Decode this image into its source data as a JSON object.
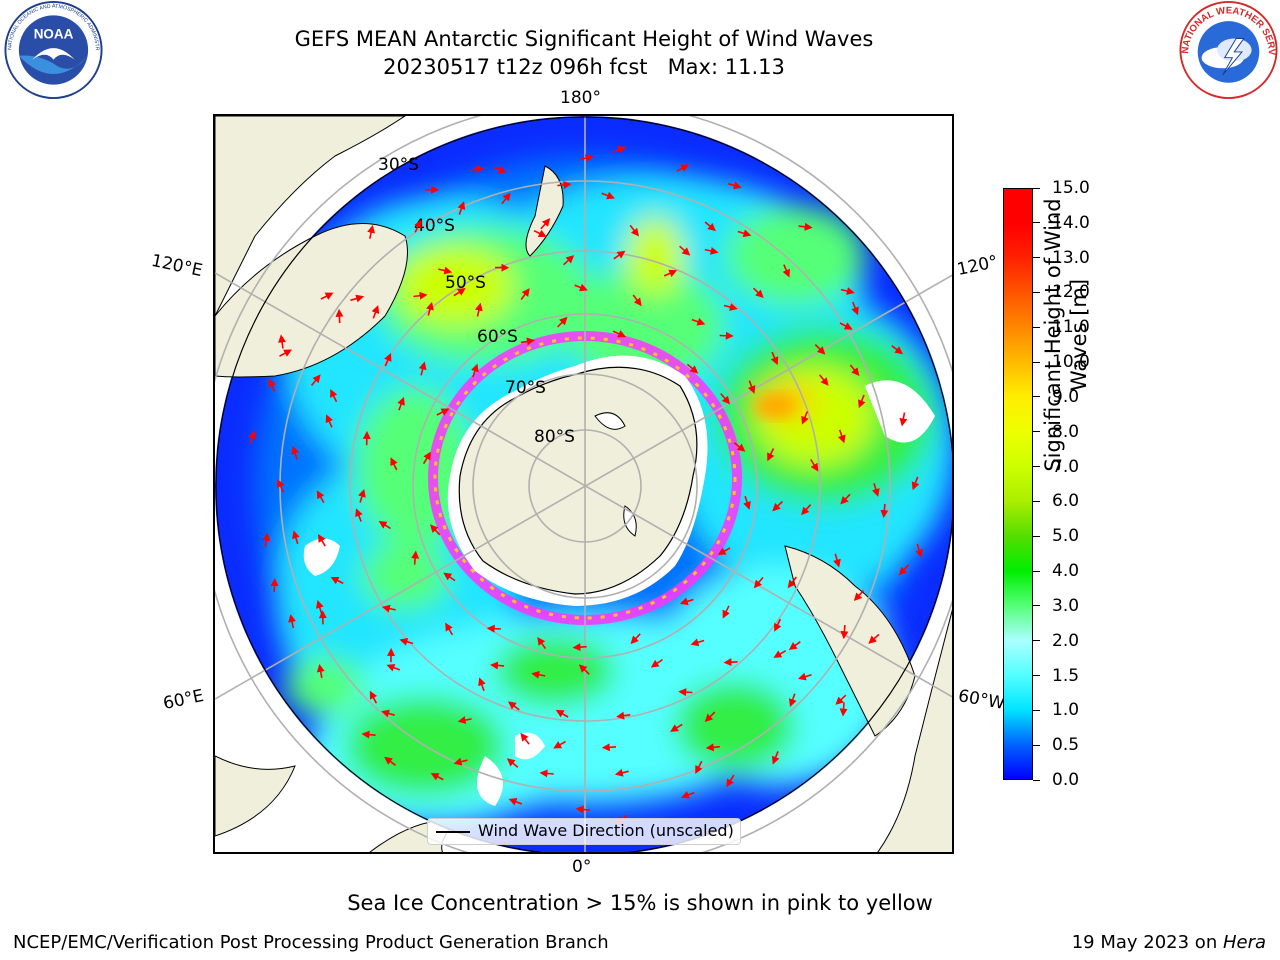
{
  "title": {
    "line1": "GEFS MEAN Antarctic Significant Height of Wind Waves",
    "line2": "20230517 t12z 096h fcst   Max: 11.13"
  },
  "logos": {
    "noaa": {
      "icon": "noaa-logo",
      "label": "NOAA",
      "ring_text": "NATIONAL OCEANIC AND ATMOSPHERIC ADMINISTRATION · U.S. DEPARTMENT OF COMMERCE"
    },
    "nws": {
      "icon": "nws-logo",
      "ring_text": "NATIONAL WEATHER SERVICE"
    }
  },
  "map": {
    "projection": "south-polar-stereographic",
    "longitude_labels": {
      "top": "180°",
      "bottom": "0°",
      "upper_left": "120°E",
      "upper_right": "120°",
      "lower_left": "60°E",
      "lower_right": "60°W"
    },
    "latitude_labels": [
      "30°S",
      "40°S",
      "50°S",
      "60°S",
      "70°S",
      "80°S"
    ],
    "colors": {
      "land": "#efefdb",
      "ocean_low": "#0000ff",
      "gridline": "#b0b0b0",
      "arrow": "#ff0000",
      "sea_ice_low": "#ff33ff",
      "sea_ice_high": "#ffd700"
    },
    "max_value": 11.13
  },
  "colorbar": {
    "title_line1": "Significant Height of Wind",
    "title_line2": "Waves [m]",
    "ticks": [
      "0.0",
      "0.5",
      "1.0",
      "1.5",
      "2.0",
      "3.0",
      "4.0",
      "5.0",
      "6.0",
      "7.0",
      "8.0",
      "9.0",
      "10.0",
      "11.0",
      "12.0",
      "13.0",
      "14.0",
      "15.0"
    ],
    "colors": [
      "#0000ff",
      "#0064ff",
      "#00e5ff",
      "#55ffff",
      "#aaffff",
      "#55ff77",
      "#00ee00",
      "#55dd00",
      "#aaee00",
      "#ccff00",
      "#eeff00",
      "#ffee00",
      "#ffbb00",
      "#ff8800",
      "#ff5500",
      "#ff2200",
      "#ff0000"
    ]
  },
  "legend": {
    "label": "Wind Wave Direction (unscaled)"
  },
  "note": "Sea Ice Concentration > 15% is shown in pink to yellow",
  "footer": {
    "left": "NCEP/EMC/Verification Post Processing Product Generation Branch",
    "right_prefix": "19 May 2023 on ",
    "right_host": "Hera"
  }
}
